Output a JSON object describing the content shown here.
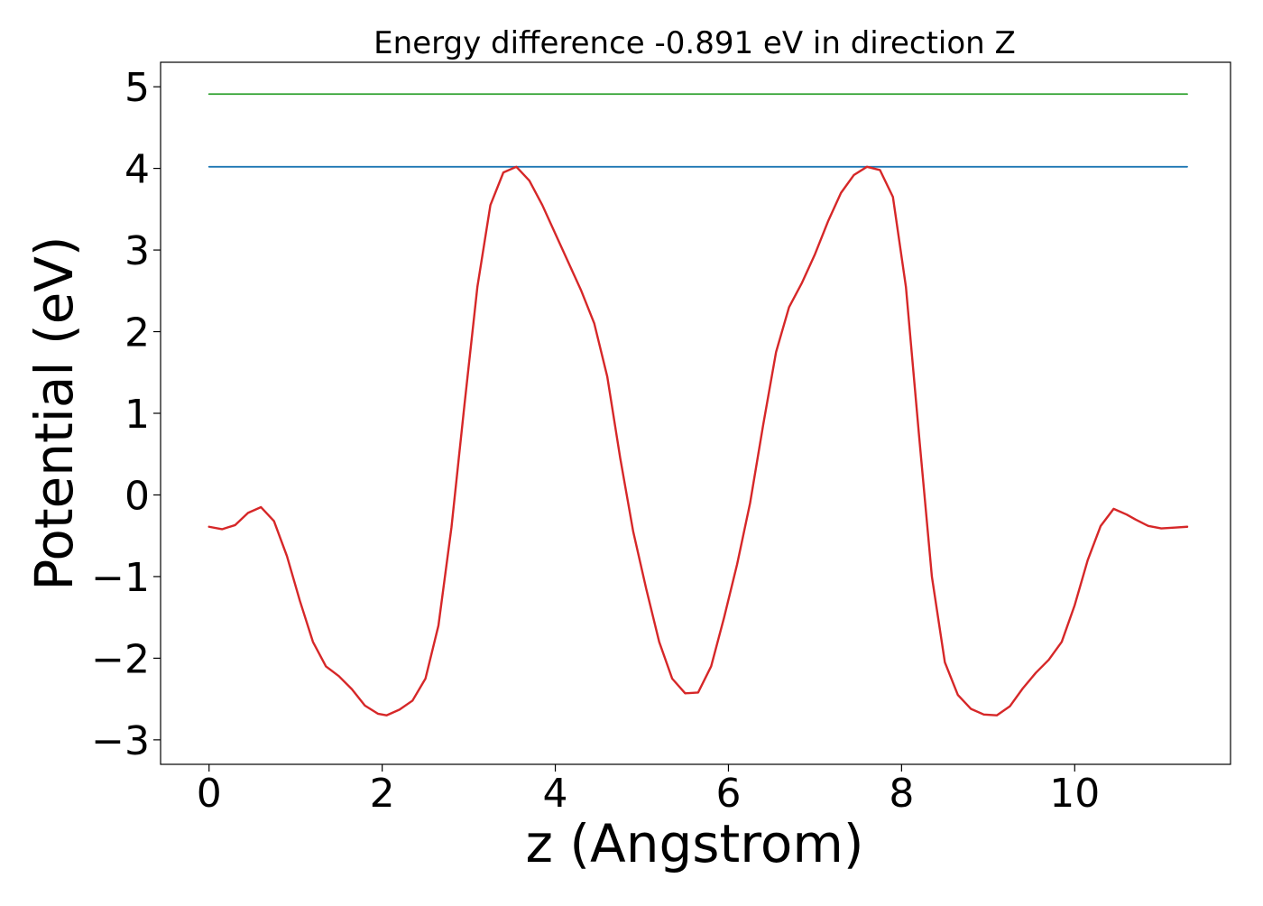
{
  "chart_data": {
    "type": "line",
    "title": "Energy difference -0.891 eV in direction Z",
    "xlabel": "z (Angstrom)",
    "ylabel": "Potential (eV)",
    "xlim": [
      -0.56,
      11.8
    ],
    "ylim": [
      -3.3,
      5.3
    ],
    "xticks": [
      0,
      2,
      4,
      6,
      8,
      10
    ],
    "yticks": [
      -3,
      -2,
      -1,
      0,
      1,
      2,
      3,
      4,
      5
    ],
    "xtick_labels": [
      "0",
      "2",
      "4",
      "6",
      "8",
      "10"
    ],
    "ytick_labels": [
      "−3",
      "−2",
      "−1",
      "0",
      "1",
      "2",
      "3",
      "4",
      "5"
    ],
    "grid": false,
    "legend": false,
    "series": [
      {
        "color": "#2ca02c",
        "x": [
          0,
          11.3
        ],
        "y": [
          4.91,
          4.91
        ]
      },
      {
        "color": "#1f77b4",
        "x": [
          0,
          11.3
        ],
        "y": [
          4.02,
          4.02
        ]
      },
      {
        "color": "#d62728",
        "x": [
          0,
          0.15,
          0.3,
          0.45,
          0.6,
          0.75,
          0.9,
          1.05,
          1.2,
          1.35,
          1.5,
          1.65,
          1.8,
          1.95,
          2.05,
          2.2,
          2.35,
          2.5,
          2.65,
          2.8,
          2.95,
          3.1,
          3.25,
          3.4,
          3.55,
          3.7,
          3.85,
          4.0,
          4.15,
          4.3,
          4.45,
          4.6,
          4.75,
          4.9,
          5.05,
          5.2,
          5.35,
          5.5,
          5.65,
          5.8,
          5.95,
          6.1,
          6.25,
          6.4,
          6.55,
          6.7,
          6.85,
          7.0,
          7.15,
          7.3,
          7.45,
          7.6,
          7.75,
          7.9,
          8.05,
          8.2,
          8.35,
          8.5,
          8.65,
          8.8,
          8.95,
          9.1,
          9.25,
          9.4,
          9.55,
          9.7,
          9.85,
          10.0,
          10.15,
          10.3,
          10.45,
          10.6,
          10.7,
          10.85,
          11.0,
          11.15,
          11.3
        ],
        "y": [
          -0.39,
          -0.42,
          -0.37,
          -0.22,
          -0.15,
          -0.32,
          -0.75,
          -1.3,
          -1.8,
          -2.1,
          -2.22,
          -2.38,
          -2.58,
          -2.68,
          -2.7,
          -2.63,
          -2.52,
          -2.25,
          -1.6,
          -0.4,
          1.1,
          2.55,
          3.55,
          3.95,
          4.02,
          3.85,
          3.55,
          3.2,
          2.85,
          2.5,
          2.1,
          1.45,
          0.45,
          -0.45,
          -1.15,
          -1.8,
          -2.25,
          -2.43,
          -2.42,
          -2.1,
          -1.5,
          -0.85,
          -0.1,
          0.85,
          1.75,
          2.3,
          2.6,
          2.95,
          3.35,
          3.7,
          3.92,
          4.02,
          3.98,
          3.65,
          2.55,
          0.75,
          -1.0,
          -2.05,
          -2.45,
          -2.62,
          -2.69,
          -2.7,
          -2.59,
          -2.37,
          -2.18,
          -2.02,
          -1.8,
          -1.35,
          -0.8,
          -0.38,
          -0.17,
          -0.24,
          -0.3,
          -0.38,
          -0.41,
          -0.4,
          -0.39
        ]
      }
    ]
  }
}
